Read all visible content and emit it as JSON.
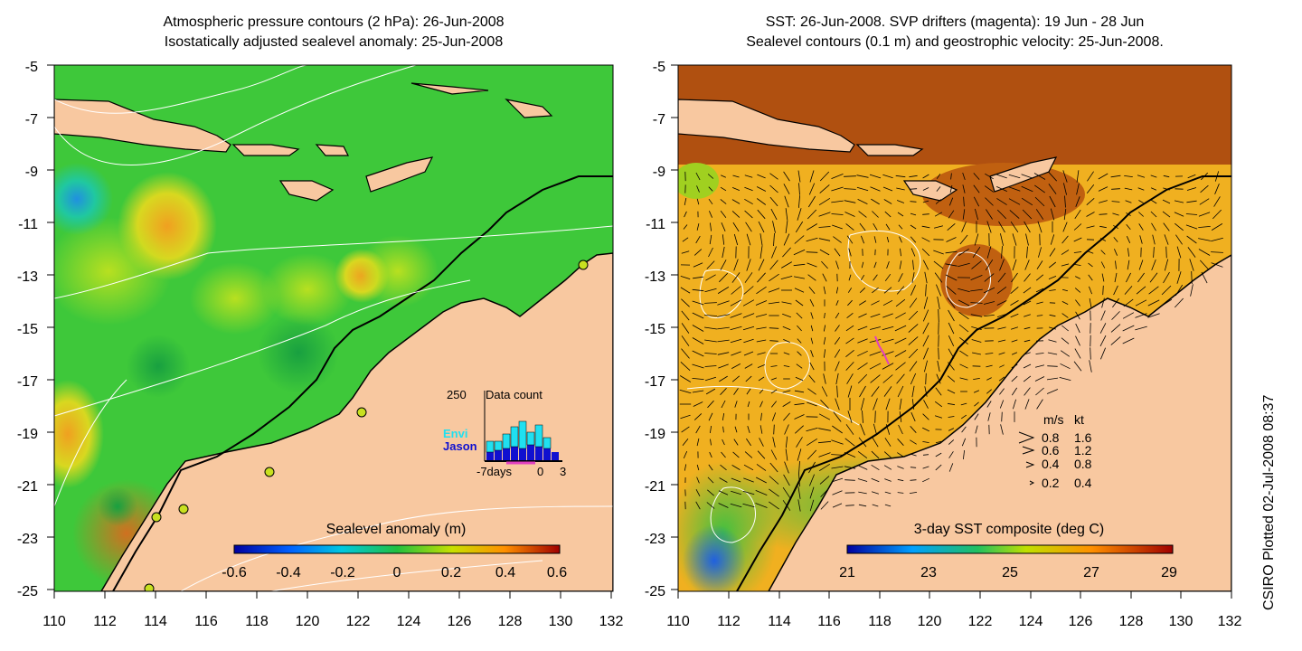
{
  "left_panel": {
    "title_line1": "Atmospheric pressure contours (2 hPa): 26-Jun-2008",
    "title_line2": "Isostatically adjusted sealevel anomaly: 25-Jun-2008",
    "y_ticks": [
      "-5",
      "-7",
      "-9",
      "-11",
      "-13",
      "-15",
      "-17",
      "-19",
      "-21",
      "-23",
      "-25"
    ],
    "x_ticks": [
      "110",
      "112",
      "114",
      "116",
      "118",
      "120",
      "122",
      "124",
      "126",
      "128",
      "130",
      "132"
    ],
    "colorbar_title": "Sealevel anomaly (m)",
    "colorbar_ticks": [
      "-0.6",
      "-0.4",
      "-0.2",
      "0",
      "0.2",
      "0.4",
      "0.6"
    ],
    "inset": {
      "max_label": "250",
      "title": "Data count",
      "series_envi": "Envi",
      "series_jason": "Jason",
      "x_left": "-7days",
      "x_mid": "0",
      "x_right": "3"
    }
  },
  "right_panel": {
    "title_line1": "SST: 26-Jun-2008. SVP drifters (magenta): 19 Jun - 28 Jun",
    "title_line2": "Sealevel contours (0.1 m) and geostrophic velocity: 25-Jun-2008.",
    "y_ticks": [
      "-5",
      "-7",
      "-9",
      "-11",
      "-13",
      "-15",
      "-17",
      "-19",
      "-21",
      "-23",
      "-25"
    ],
    "x_ticks": [
      "110",
      "112",
      "114",
      "116",
      "118",
      "120",
      "122",
      "124",
      "126",
      "128",
      "130",
      "132"
    ],
    "colorbar_title": "3-day SST composite (deg C)",
    "colorbar_ticks": [
      "21",
      "23",
      "25",
      "27",
      "29"
    ],
    "velocity_legend": {
      "header_ms": "m/s",
      "header_kt": "kt",
      "rows": [
        {
          "ms": "0.8",
          "kt": "1.6"
        },
        {
          "ms": "0.6",
          "kt": "1.2"
        },
        {
          "ms": "0.4",
          "kt": "0.8"
        },
        {
          "ms": "0.2",
          "kt": "0.4"
        }
      ]
    }
  },
  "credit": "CSIRO Plotted 02-Jul-2008 08:37",
  "colors": {
    "land": "#f8c8a0",
    "sla_base": "#3ec83a",
    "sst_base": "#f0b020",
    "drifter": "#e040c0",
    "envi": "#20e0f0",
    "jason": "#1010d0"
  }
}
